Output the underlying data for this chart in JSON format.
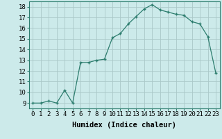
{
  "xlabel": "Humidex (Indice chaleur)",
  "x_values": [
    0,
    1,
    2,
    3,
    4,
    5,
    6,
    7,
    8,
    9,
    10,
    11,
    12,
    13,
    14,
    15,
    16,
    17,
    18,
    19,
    20,
    21,
    22,
    23
  ],
  "y_values": [
    9,
    9,
    9.2,
    9,
    10.2,
    9,
    12.8,
    12.8,
    13,
    13.1,
    15.1,
    15.5,
    16.4,
    17.1,
    17.8,
    18.2,
    17.7,
    17.5,
    17.3,
    17.2,
    16.6,
    16.4,
    15.2,
    11.8
  ],
  "xlim": [
    -0.5,
    23.5
  ],
  "ylim": [
    8.5,
    18.5
  ],
  "yticks": [
    9,
    10,
    11,
    12,
    13,
    14,
    15,
    16,
    17,
    18
  ],
  "xticks": [
    0,
    1,
    2,
    3,
    4,
    5,
    6,
    7,
    8,
    9,
    10,
    11,
    12,
    13,
    14,
    15,
    16,
    17,
    18,
    19,
    20,
    21,
    22,
    23
  ],
  "line_color": "#2d7d6e",
  "marker_color": "#2d7d6e",
  "bg_color": "#cceaea",
  "grid_color": "#aac8c8",
  "border_color": "#2d7d6e",
  "tick_fontsize": 6.5,
  "label_fontsize": 7.5
}
